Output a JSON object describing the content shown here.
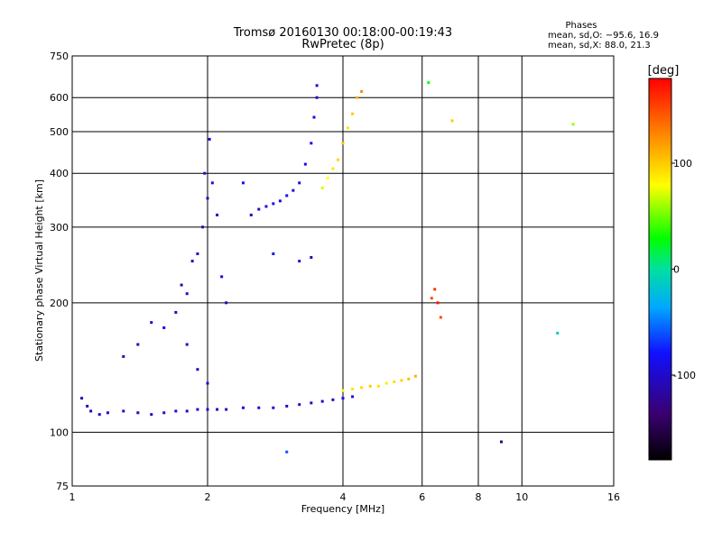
{
  "chart_data": {
    "type": "scatter",
    "title": "Tromsø 20160130 00:18:00-00:19:43",
    "subtitle": "RwPretec (8p)",
    "stats": {
      "heading": "Phases",
      "line1": "mean, sd,O: −95.6, 16.9",
      "line2": "mean, sd,X:  88.0, 21.3"
    },
    "xlabel": "Frequency [MHz]",
    "ylabel": "Stationary phase Virtual Height [km]",
    "x_scale": "log",
    "y_scale": "log",
    "xlim": [
      1,
      16
    ],
    "ylim": [
      75,
      750
    ],
    "grid": true,
    "x_ticks": [
      {
        "value": 1,
        "label": "1"
      },
      {
        "value": 2,
        "label": "2"
      },
      {
        "value": 4,
        "label": "4"
      },
      {
        "value": 6,
        "label": "6"
      },
      {
        "value": 8,
        "label": "8"
      },
      {
        "value": 10,
        "label": "10"
      },
      {
        "value": 16,
        "label": "16"
      }
    ],
    "y_ticks": [
      {
        "value": 75,
        "label": "75"
      },
      {
        "value": 100,
        "label": "100"
      },
      {
        "value": 200,
        "label": "200"
      },
      {
        "value": 300,
        "label": "300"
      },
      {
        "value": 400,
        "label": "400"
      },
      {
        "value": 500,
        "label": "500"
      },
      {
        "value": 600,
        "label": "600"
      },
      {
        "value": 750,
        "label": "750"
      }
    ],
    "colorbar": {
      "title": "[deg]",
      "range": [
        -180,
        180
      ],
      "ticks": [
        {
          "value": 100,
          "label": "100"
        },
        {
          "value": 0,
          "label": "0"
        },
        {
          "value": -100,
          "label": "-100"
        }
      ]
    },
    "series": [
      {
        "description_note": "O-mode low layer trace",
        "points": [
          [
            1.05,
            120,
            -110
          ],
          [
            1.08,
            115,
            -105
          ],
          [
            1.1,
            112,
            -108
          ],
          [
            1.15,
            110,
            -102
          ],
          [
            1.2,
            111,
            -98
          ],
          [
            1.3,
            112,
            -100
          ],
          [
            1.4,
            111,
            -104
          ],
          [
            1.5,
            110,
            -99
          ],
          [
            1.6,
            111,
            -101
          ],
          [
            1.7,
            112,
            -97
          ],
          [
            1.8,
            112,
            -103
          ],
          [
            1.9,
            113,
            -100
          ],
          [
            2.0,
            113,
            -96
          ],
          [
            2.1,
            113,
            -102
          ],
          [
            2.2,
            113,
            -99
          ],
          [
            2.4,
            114,
            -101
          ],
          [
            2.6,
            114,
            -98
          ],
          [
            2.8,
            114,
            -100
          ],
          [
            3.0,
            115,
            -102
          ],
          [
            3.2,
            116,
            -97
          ],
          [
            3.4,
            117,
            -100
          ],
          [
            3.6,
            118,
            -99
          ],
          [
            3.8,
            119,
            -95
          ],
          [
            4.0,
            120,
            -90
          ],
          [
            4.2,
            121,
            -92
          ]
        ]
      },
      {
        "description_note": "Spread echoes near 1-2 MHz",
        "points": [
          [
            1.3,
            150,
            -110
          ],
          [
            1.4,
            160,
            -108
          ],
          [
            1.5,
            180,
            -100
          ],
          [
            1.6,
            175,
            -95
          ],
          [
            1.7,
            190,
            -105
          ],
          [
            1.75,
            220,
            -112
          ],
          [
            1.8,
            210,
            -98
          ],
          [
            1.85,
            250,
            -100
          ],
          [
            1.9,
            260,
            -104
          ],
          [
            1.95,
            300,
            -102
          ],
          [
            2.0,
            350,
            -99
          ],
          [
            1.97,
            400,
            -101
          ],
          [
            2.02,
            480,
            -96
          ],
          [
            2.05,
            380,
            -97
          ],
          [
            2.1,
            320,
            -100
          ],
          [
            2.15,
            230,
            -94
          ],
          [
            2.2,
            200,
            -105
          ],
          [
            1.9,
            140,
            -107
          ],
          [
            2.0,
            130,
            -99
          ],
          [
            1.8,
            160,
            -103
          ]
        ]
      },
      {
        "description_note": "F-layer O trace rising",
        "points": [
          [
            2.5,
            320,
            -100
          ],
          [
            2.6,
            330,
            -98
          ],
          [
            2.7,
            335,
            -96
          ],
          [
            2.8,
            340,
            -94
          ],
          [
            2.9,
            345,
            -92
          ],
          [
            3.0,
            355,
            -90
          ],
          [
            3.1,
            365,
            -92
          ],
          [
            3.2,
            380,
            -88
          ],
          [
            3.3,
            420,
            -86
          ],
          [
            3.4,
            470,
            -88
          ],
          [
            3.45,
            540,
            -90
          ],
          [
            3.5,
            600,
            -92
          ],
          [
            3.5,
            640,
            -94
          ]
        ]
      },
      {
        "description_note": "F-layer X trace rising",
        "points": [
          [
            3.6,
            370,
            70
          ],
          [
            3.7,
            390,
            80
          ],
          [
            3.8,
            410,
            88
          ],
          [
            3.9,
            430,
            95
          ],
          [
            4.0,
            470,
            100
          ],
          [
            4.1,
            510,
            90
          ],
          [
            4.2,
            550,
            100
          ],
          [
            4.3,
            600,
            110
          ],
          [
            4.4,
            620,
            125
          ]
        ]
      },
      {
        "description_note": "X-mode low layer trace",
        "points": [
          [
            4.0,
            125,
            80
          ],
          [
            4.2,
            126,
            90
          ],
          [
            4.4,
            127,
            95
          ],
          [
            4.6,
            128,
            100
          ],
          [
            4.8,
            128,
            90
          ],
          [
            5.0,
            130,
            85
          ],
          [
            5.2,
            131,
            92
          ],
          [
            5.4,
            132,
            98
          ],
          [
            5.6,
            133,
            105
          ],
          [
            5.8,
            135,
            110
          ],
          [
            6.3,
            205,
            150
          ],
          [
            6.4,
            215,
            160
          ],
          [
            6.5,
            200,
            170
          ],
          [
            6.6,
            185,
            150
          ]
        ]
      },
      {
        "description_note": "Isolated echoes",
        "points": [
          [
            2.4,
            380,
            -80
          ],
          [
            2.8,
            260,
            -85
          ],
          [
            3.2,
            250,
            -95
          ],
          [
            3.4,
            255,
            -110
          ],
          [
            9.0,
            95,
            -130
          ],
          [
            6.2,
            650,
            30
          ],
          [
            7.0,
            530,
            100
          ],
          [
            13.0,
            520,
            60
          ],
          [
            12.0,
            170,
            -10
          ],
          [
            3.0,
            90,
            -60
          ]
        ]
      }
    ]
  }
}
